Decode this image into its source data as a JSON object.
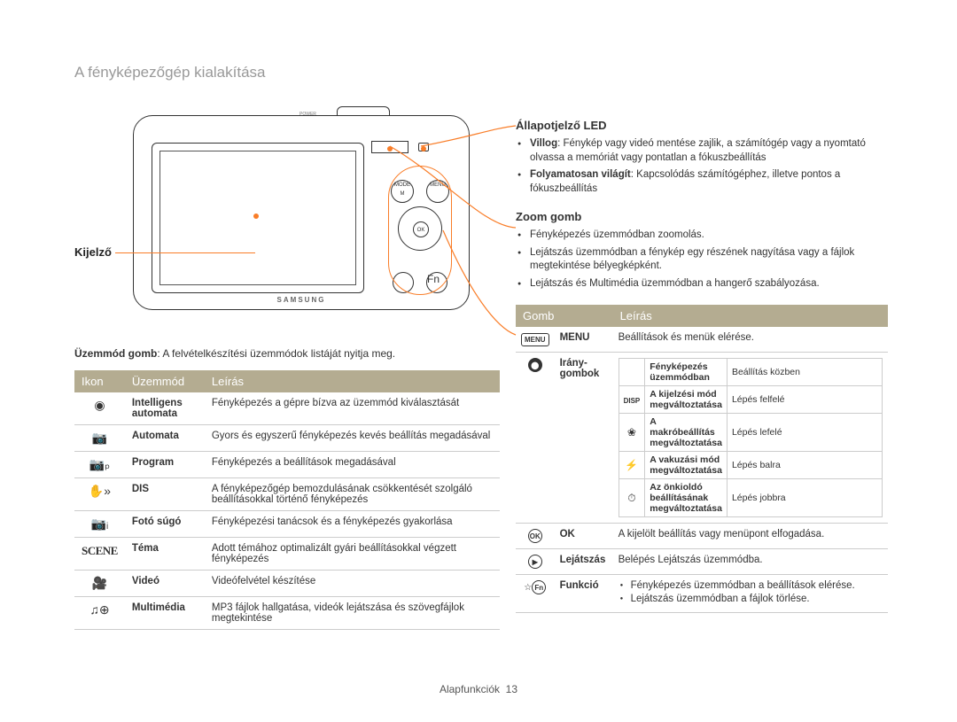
{
  "page_title": "A fényképezőgép kialakítása",
  "camera_brand": "SAMSUNG",
  "label_display": "Kijelző",
  "mode_sentence_prefix": "Üzemmód gomb",
  "mode_sentence_rest": ": A felvételkészítési üzemmódok listáját nyitja meg.",
  "mode_table": {
    "headers": [
      "Ikon",
      "Üzemmód",
      "Leírás"
    ],
    "rows": [
      {
        "icon": "◉",
        "icon_name": "smart-auto-icon",
        "mode": "Intelligens automata",
        "desc": "Fényképezés a gépre bízva az üzemmód kiválasztását"
      },
      {
        "icon": "📷",
        "icon_name": "camera-icon",
        "mode": "Automata",
        "desc": "Gyors és egyszerű fényképezés kevés beállítás megadásával"
      },
      {
        "icon": "📷ₚ",
        "icon_name": "camera-p-icon",
        "mode": "Program",
        "desc": "Fényképezés a beállítások megadásával"
      },
      {
        "icon": "✋»",
        "icon_name": "hand-icon",
        "mode": "DIS",
        "desc": "A fényképezőgép bemozdulásának csökkentését szolgáló beállításokkal történő fényképezés"
      },
      {
        "icon": "📷ᵢ",
        "icon_name": "camera-guide-icon",
        "mode": "Fotó súgó",
        "desc": "Fényképezési tanácsok és a fényképezés gyakorlása"
      },
      {
        "icon": "SCENE",
        "icon_name": "scene-icon",
        "mode": "Téma",
        "desc": "Adott témához optimalizált gyári beállításokkal végzett fényképezés"
      },
      {
        "icon": "🎥",
        "icon_name": "video-icon",
        "mode": "Videó",
        "desc": "Videófelvétel készítése"
      },
      {
        "icon": "♫⊕",
        "icon_name": "multimedia-icon",
        "mode": "Multimédia",
        "desc": "MP3 fájlok hallgatása, videók lejátszása és szövegfájlok megtekintése"
      }
    ]
  },
  "led_section": {
    "heading": "Állapotjelző LED",
    "bullets": [
      {
        "bold": "Villog",
        "rest": ": Fénykép vagy videó mentése zajlik, a számítógép vagy a nyomtató olvassa a memóriát vagy pontatlan a fókuszbeállítás"
      },
      {
        "bold": "Folyamatosan világít",
        "rest": ": Kapcsolódás számítógéphez, illetve pontos a fókuszbeállítás"
      }
    ]
  },
  "zoom_section": {
    "heading": "Zoom gomb",
    "bullets": [
      "Fényképezés üzemmódban zoomolás.",
      "Lejátszás üzemmódban a fénykép egy részének nagyítása vagy a fájlok megtekintése bélyegképként.",
      "Lejátszás és Multimédia üzemmódban a hangerő szabályozása."
    ]
  },
  "gomb_table": {
    "headers": [
      "Gomb",
      "Leírás"
    ],
    "rows": [
      {
        "icon_label": "MENU",
        "name": "MENU",
        "desc": "Beállítások és menük elérése."
      },
      {
        "icon_label": "DISP",
        "name": "Irány-gombok",
        "desc_table": {
          "header": [
            "",
            "Fényképezés üzemmódban",
            "Beállítás közben"
          ],
          "rows": [
            {
              "icon": "DISP",
              "a": "A kijelzési mód megváltoztatása",
              "b": "Lépés felfelé"
            },
            {
              "icon": "❀",
              "a": "A makróbeállítás megváltoztatása",
              "b": "Lépés lefelé"
            },
            {
              "icon": "⚡",
              "a": "A vakuzási mód megváltoztatása",
              "b": "Lépés balra"
            },
            {
              "icon": "⏱",
              "a": "Az önkioldó beállításának megváltoztatása",
              "b": "Lépés jobbra"
            }
          ]
        }
      },
      {
        "icon_label": "OK",
        "name": "OK",
        "desc": "A kijelölt beállítás vagy menüpont elfogadása."
      },
      {
        "icon_label": "▶",
        "name": "Lejátszás",
        "desc": "Belépés Lejátszás üzemmódba."
      },
      {
        "icon_label": "Fn",
        "name": "Funkció",
        "desc_bullets": [
          "Fényképezés üzemmódban a beállítások elérése.",
          "Lejátszás üzemmódban a fájlok törlése."
        ]
      }
    ]
  },
  "footer": {
    "label": "Alapfunkciók",
    "page": "13"
  },
  "colors": {
    "accent": "#f97d28",
    "table_header_bg": "#b4ac91"
  }
}
